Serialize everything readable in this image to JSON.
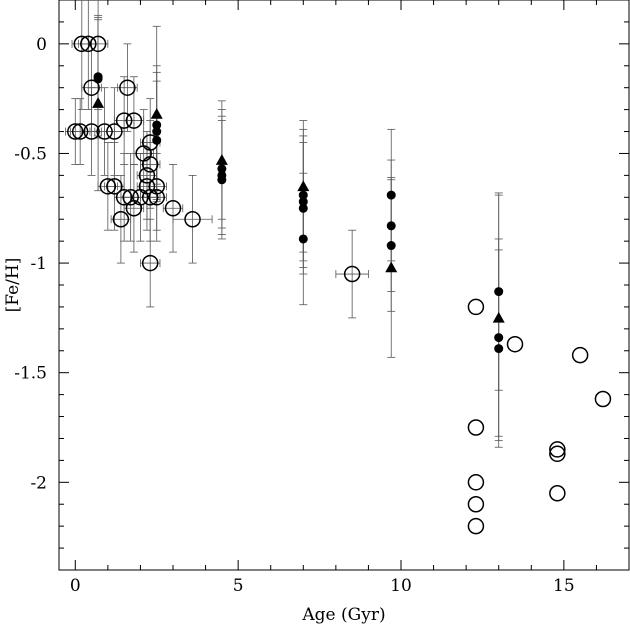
{
  "chart_data": {
    "type": "scatter",
    "xlabel": "Age (Gyr)",
    "ylabel": "[Fe/H]",
    "xlim": [
      -0.5,
      17
    ],
    "ylim": [
      -2.4,
      0.2
    ],
    "xticks": [
      {
        "value": 0,
        "label": "0"
      },
      {
        "value": 5,
        "label": "5"
      },
      {
        "value": 10,
        "label": "10"
      },
      {
        "value": 15,
        "label": "15"
      }
    ],
    "yticks": [
      {
        "value": 0,
        "label": "0"
      },
      {
        "value": -0.5,
        "label": "-0.5"
      },
      {
        "value": -1,
        "label": "-1"
      },
      {
        "value": -1.5,
        "label": "-1.5"
      },
      {
        "value": -2,
        "label": "-2"
      }
    ],
    "grid": false,
    "series": [
      {
        "marker": "open-circle",
        "points": [
          {
            "x": 0.0,
            "y": -0.4,
            "xerr": 0.3,
            "yerr": 0.15
          },
          {
            "x": 0.15,
            "y": -0.4,
            "xerr": 0.3,
            "yerr": 0.15
          },
          {
            "x": 0.2,
            "y": 0.0,
            "xerr": 0.3,
            "yerr": 0.3
          },
          {
            "x": 0.4,
            "y": 0.0,
            "xerr": 0.3,
            "yerr": 0.3
          },
          {
            "x": 0.7,
            "y": 0.0,
            "xerr": 0.3,
            "yerr": 0.3
          },
          {
            "x": 0.5,
            "y": -0.2,
            "xerr": 0.3,
            "yerr": 0.2
          },
          {
            "x": 0.5,
            "y": -0.4,
            "xerr": 0.3,
            "yerr": 0.2
          },
          {
            "x": 0.9,
            "y": -0.4,
            "xerr": 0.3,
            "yerr": 0.2
          },
          {
            "x": 1.2,
            "y": -0.4,
            "xerr": 0.3,
            "yerr": 0.2
          },
          {
            "x": 1.0,
            "y": -0.65,
            "xerr": 0.3,
            "yerr": 0.2
          },
          {
            "x": 1.2,
            "y": -0.65,
            "xerr": 0.3,
            "yerr": 0.2
          },
          {
            "x": 1.4,
            "y": -0.8,
            "xerr": 0.3,
            "yerr": 0.2
          },
          {
            "x": 1.5,
            "y": -0.7,
            "xerr": 0.3,
            "yerr": 0.2
          },
          {
            "x": 1.5,
            "y": -0.35,
            "xerr": 0.3,
            "yerr": 0.2
          },
          {
            "x": 1.6,
            "y": -0.2,
            "xerr": 0.3,
            "yerr": 0.2
          },
          {
            "x": 1.7,
            "y": -0.7,
            "xerr": 0.3,
            "yerr": 0.2
          },
          {
            "x": 1.8,
            "y": -0.35,
            "xerr": 0.3,
            "yerr": 0.2
          },
          {
            "x": 1.8,
            "y": -0.75,
            "xerr": 0.3,
            "yerr": 0.2
          },
          {
            "x": 2.0,
            "y": -0.7,
            "xerr": 0.3,
            "yerr": 0.2
          },
          {
            "x": 2.1,
            "y": -0.5,
            "xerr": 0.3,
            "yerr": 0.2
          },
          {
            "x": 2.2,
            "y": -0.6,
            "xerr": 0.3,
            "yerr": 0.2
          },
          {
            "x": 2.2,
            "y": -0.65,
            "xerr": 0.3,
            "yerr": 0.2
          },
          {
            "x": 2.3,
            "y": -0.45,
            "xerr": 0.3,
            "yerr": 0.2
          },
          {
            "x": 2.3,
            "y": -0.55,
            "xerr": 0.3,
            "yerr": 0.2
          },
          {
            "x": 2.3,
            "y": -0.7,
            "xerr": 0.3,
            "yerr": 0.2
          },
          {
            "x": 2.5,
            "y": -0.65,
            "xerr": 0.3,
            "yerr": 0.2
          },
          {
            "x": 2.5,
            "y": -0.7,
            "xerr": 0.3,
            "yerr": 0.2
          },
          {
            "x": 2.3,
            "y": -1.0,
            "xerr": 0.3,
            "yerr": 0.2
          },
          {
            "x": 3.0,
            "y": -0.75,
            "xerr": 0.3,
            "yerr": 0.2
          },
          {
            "x": 3.6,
            "y": -0.8,
            "xerr": 0.6,
            "yerr": 0.2
          },
          {
            "x": 8.5,
            "y": -1.05,
            "xerr": 0.5,
            "yerr": 0.2
          },
          {
            "x": 12.3,
            "y": -1.2
          },
          {
            "x": 13.5,
            "y": -1.37
          },
          {
            "x": 15.5,
            "y": -1.42
          },
          {
            "x": 16.2,
            "y": -1.62
          },
          {
            "x": 12.3,
            "y": -1.75
          },
          {
            "x": 14.8,
            "y": -1.85
          },
          {
            "x": 14.8,
            "y": -1.87
          },
          {
            "x": 12.3,
            "y": -2.0
          },
          {
            "x": 14.8,
            "y": -2.05
          },
          {
            "x": 12.3,
            "y": -2.1
          },
          {
            "x": 12.3,
            "y": -2.2
          }
        ]
      },
      {
        "marker": "filled-circle",
        "points": [
          {
            "x": 0.7,
            "y": -0.15,
            "yerr": 0.27
          },
          {
            "x": 0.7,
            "y": -0.16,
            "yerr": 0.27
          },
          {
            "x": 2.5,
            "y": -0.37,
            "yerr": 0.27
          },
          {
            "x": 2.5,
            "y": -0.4,
            "yerr": 0.27
          },
          {
            "x": 2.5,
            "y": -0.44,
            "yerr": 0.27
          },
          {
            "x": 4.5,
            "y": -0.57,
            "yerr": 0.27
          },
          {
            "x": 4.5,
            "y": -0.6,
            "yerr": 0.27
          },
          {
            "x": 4.5,
            "y": -0.62,
            "yerr": 0.27
          },
          {
            "x": 7.0,
            "y": -0.69,
            "yerr": 0.3
          },
          {
            "x": 7.0,
            "y": -0.72,
            "yerr": 0.3
          },
          {
            "x": 7.0,
            "y": -0.75,
            "yerr": 0.3
          },
          {
            "x": 7.0,
            "y": -0.89,
            "yerr": 0.3
          },
          {
            "x": 9.7,
            "y": -0.69,
            "yerr": 0.3
          },
          {
            "x": 9.7,
            "y": -0.83,
            "yerr": 0.3
          },
          {
            "x": 9.7,
            "y": -0.92,
            "yerr": 0.3
          },
          {
            "x": 13.0,
            "y": -1.13,
            "yerr": 0.45
          },
          {
            "x": 13.0,
            "y": -1.34,
            "yerr": 0.45
          },
          {
            "x": 13.0,
            "y": -1.39,
            "yerr": 0.45
          }
        ]
      },
      {
        "marker": "filled-triangle",
        "points": [
          {
            "x": 0.7,
            "y": -0.27,
            "yerr": 0.4
          },
          {
            "x": 2.5,
            "y": -0.32,
            "yerr": 0.4
          },
          {
            "x": 4.5,
            "y": -0.53,
            "yerr": 0.27
          },
          {
            "x": 7.0,
            "y": -0.65,
            "yerr": 0.3
          },
          {
            "x": 9.7,
            "y": -1.02,
            "yerr": 0.41
          },
          {
            "x": 13.0,
            "y": -1.25,
            "yerr": 0.56
          }
        ]
      }
    ]
  }
}
